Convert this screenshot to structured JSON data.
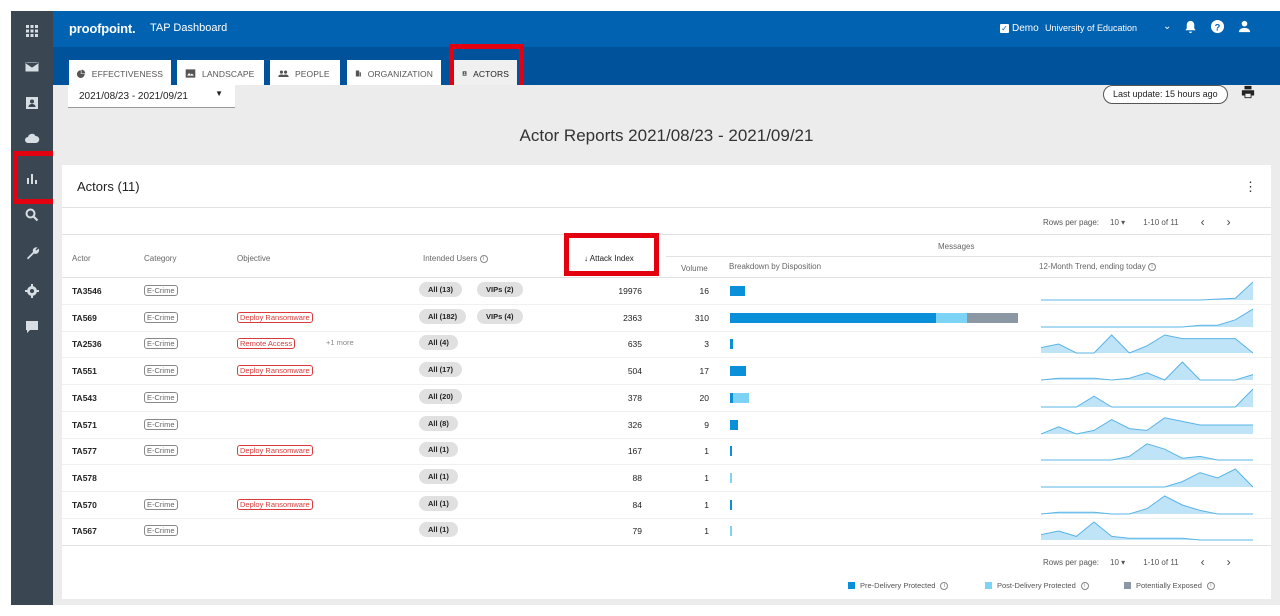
{
  "header": {
    "brand": "proofpoint.",
    "app_title": "TAP Dashboard",
    "demo_label": "Demo",
    "org_name": "University of Education"
  },
  "rail": {
    "icons": [
      "apps-grid-icon",
      "mail-icon",
      "contact-card-icon",
      "cloud-icon",
      "bar-chart-icon",
      "search-icon",
      "wrench-icon",
      "gear-icon",
      "message-icon"
    ]
  },
  "tabs": [
    {
      "label": "EFFECTIVENESS",
      "icon": "pie-chart-icon"
    },
    {
      "label": "LANDSCAPE",
      "icon": "landscape-icon"
    },
    {
      "label": "PEOPLE",
      "icon": "people-icon"
    },
    {
      "label": "ORGANIZATION",
      "icon": "organization-icon"
    },
    {
      "label": "ACTORS",
      "icon": "badge-icon",
      "active": true
    }
  ],
  "toolbar": {
    "date_range": "2021/08/23 - 2021/09/21",
    "last_update": "Last update: 15 hours ago"
  },
  "page_title": "Actor Reports 2021/08/23 - 2021/09/21",
  "table": {
    "title": "Actors (11)",
    "pager": {
      "rows_label": "Rows per page:",
      "rows_value": "10",
      "range": "1-10 of 11"
    },
    "group_header": "Messages",
    "columns": {
      "actor": "Actor",
      "category": "Category",
      "objective": "Objective",
      "intended_users": "Intended Users",
      "attack_index": "Attack Index",
      "volume": "Volume",
      "breakdown": "Breakdown by Disposition",
      "trend": "12-Month Trend, ending today"
    },
    "rows": [
      {
        "actor": "TA3546",
        "category": "E-Crime",
        "objective": "",
        "more": "",
        "users": [
          "All (13)",
          "VIPs (2)"
        ],
        "attack_index": "19976",
        "volume": "16",
        "breakdown": [
          16,
          0,
          0
        ],
        "trend": [
          0,
          0,
          0,
          0,
          0,
          0,
          0,
          0,
          0,
          0,
          0.05,
          0.1,
          1
        ]
      },
      {
        "actor": "TA569",
        "category": "E-Crime",
        "objective": "Deploy Ransomware",
        "more": "",
        "users": [
          "All (182)",
          "VIPs (4)"
        ],
        "attack_index": "2363",
        "volume": "310",
        "breakdown": [
          222,
          33,
          55
        ],
        "trend": [
          0,
          0,
          0,
          0,
          0,
          0,
          0,
          0,
          0,
          0.1,
          0.1,
          0.4,
          1
        ]
      },
      {
        "actor": "TA2536",
        "category": "E-Crime",
        "objective": "Remote Access",
        "more": "+1 more",
        "users": [
          "All (4)"
        ],
        "attack_index": "635",
        "volume": "3",
        "breakdown": [
          3,
          0,
          0
        ],
        "trend": [
          0.3,
          0.5,
          0,
          0,
          1,
          0,
          0.4,
          1,
          0.8,
          0.8,
          0.8,
          0.8,
          0
        ]
      },
      {
        "actor": "TA551",
        "category": "E-Crime",
        "objective": "Deploy Ransomware",
        "more": "",
        "users": [
          "All (17)"
        ],
        "attack_index": "504",
        "volume": "17",
        "breakdown": [
          17,
          0,
          0
        ],
        "trend": [
          0,
          0.1,
          0.1,
          0.1,
          0,
          0.1,
          0.4,
          0,
          1,
          0,
          0,
          0,
          0.3
        ]
      },
      {
        "actor": "TA543",
        "category": "E-Crime",
        "objective": "",
        "more": "",
        "users": [
          "All (20)"
        ],
        "attack_index": "378",
        "volume": "20",
        "breakdown": [
          3,
          17,
          0
        ],
        "trend": [
          0,
          0,
          0,
          0.6,
          0,
          0,
          0,
          0,
          0,
          0,
          0,
          0,
          1
        ]
      },
      {
        "actor": "TA571",
        "category": "E-Crime",
        "objective": "",
        "more": "",
        "users": [
          "All (8)"
        ],
        "attack_index": "326",
        "volume": "9",
        "breakdown": [
          9,
          0,
          0
        ],
        "trend": [
          0,
          0.4,
          0,
          0.2,
          0.8,
          0.3,
          0.2,
          0.9,
          0.7,
          0.5,
          0.5,
          0.5,
          0.5
        ]
      },
      {
        "actor": "TA577",
        "category": "E-Crime",
        "objective": "Deploy Ransomware",
        "more": "",
        "users": [
          "All (1)"
        ],
        "attack_index": "167",
        "volume": "1",
        "breakdown": [
          1,
          0,
          0
        ],
        "trend": [
          0,
          0,
          0,
          0,
          0,
          0.2,
          0.9,
          0.6,
          0.1,
          0.2,
          0,
          0,
          0
        ]
      },
      {
        "actor": "TA578",
        "category": "",
        "objective": "",
        "more": "",
        "users": [
          "All (1)"
        ],
        "attack_index": "88",
        "volume": "1",
        "breakdown": [
          0,
          1,
          0
        ],
        "trend": [
          0,
          0,
          0,
          0,
          0,
          0,
          0,
          0,
          0.3,
          0.8,
          0.5,
          1,
          0
        ]
      },
      {
        "actor": "TA570",
        "category": "E-Crime",
        "objective": "Deploy Ransomware",
        "more": "",
        "users": [
          "All (1)"
        ],
        "attack_index": "84",
        "volume": "1",
        "breakdown": [
          1,
          0,
          0
        ],
        "trend": [
          0,
          0.1,
          0.1,
          0.1,
          0,
          0,
          0.3,
          1,
          0.5,
          0.2,
          0,
          0,
          0
        ]
      },
      {
        "actor": "TA567",
        "category": "E-Crime",
        "objective": "",
        "more": "",
        "users": [
          "All (1)"
        ],
        "attack_index": "79",
        "volume": "1",
        "breakdown": [
          0,
          1,
          0
        ],
        "trend": [
          0.3,
          0.5,
          0.2,
          1,
          0.2,
          0.1,
          0.1,
          0.1,
          0.1,
          0,
          0,
          0,
          0
        ]
      }
    ]
  },
  "legend": [
    {
      "label": "Pre-Delivery Protected",
      "color": "#0a8fd9"
    },
    {
      "label": "Post-Delivery Protected",
      "color": "#7dd3f5"
    },
    {
      "label": "Potentially Exposed",
      "color": "#8b98a3"
    }
  ]
}
